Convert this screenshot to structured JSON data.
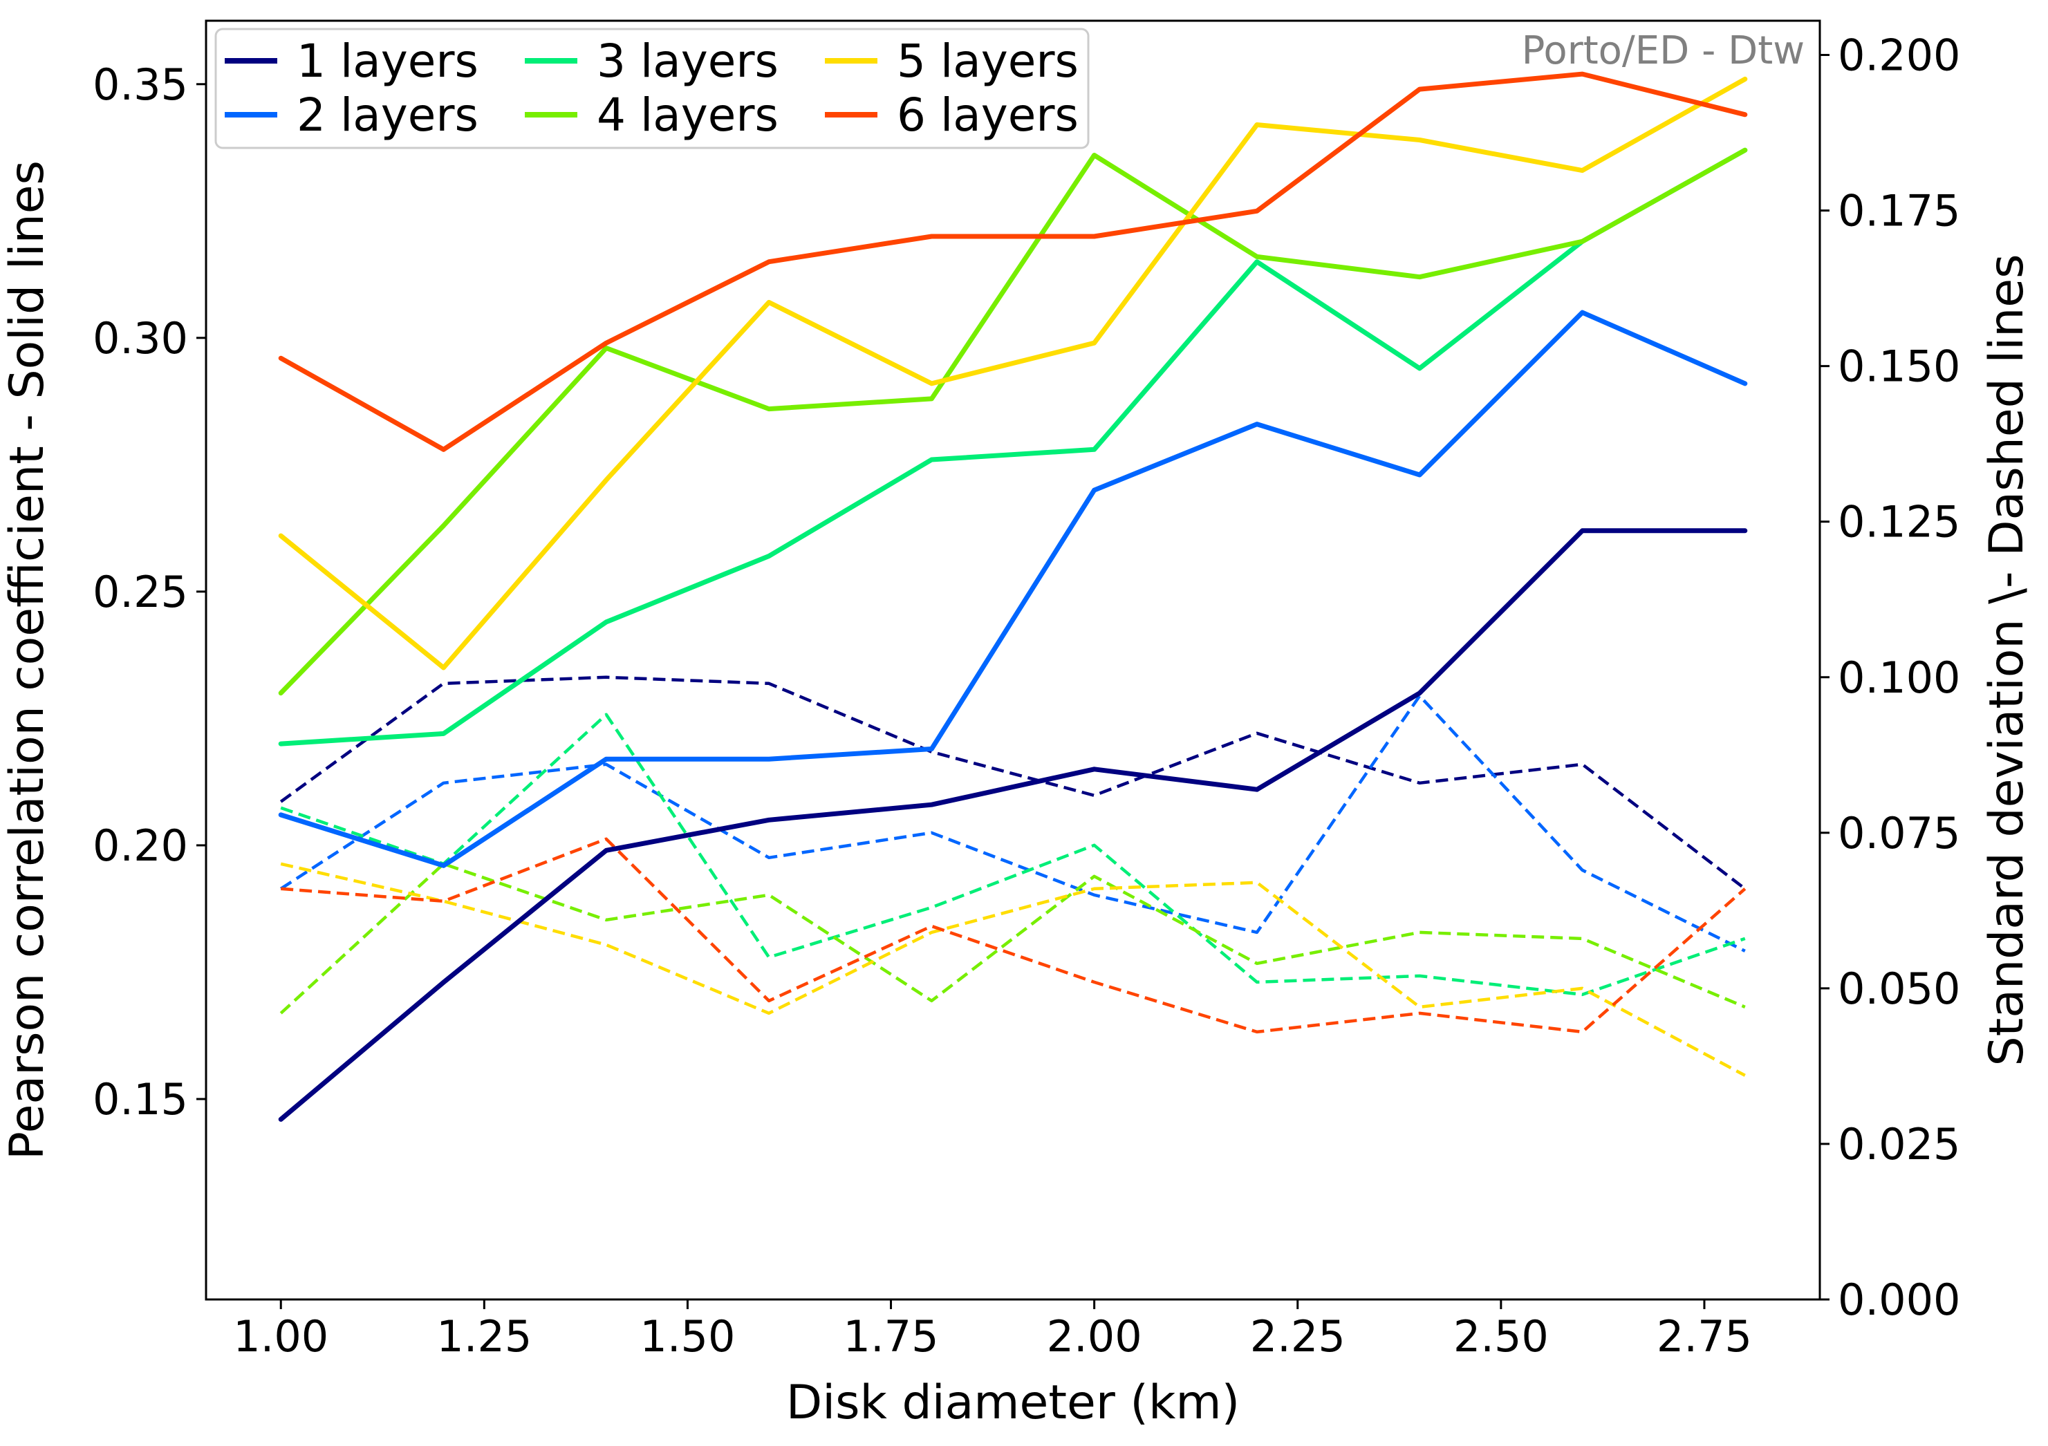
{
  "chart_data": {
    "type": "line",
    "annotation": "Porto/ED - Dtw",
    "xlabel": "Disk diameter (km)",
    "ylabel_left": "Pearson correlation coefficient - Solid lines",
    "ylabel_right": "Standard deviation \\- Dashed lines",
    "xlim": [
      0.908,
      2.892
    ],
    "ylim_left": [
      0.1105,
      0.3625
    ],
    "ylim_right": [
      0.0,
      0.2055
    ],
    "x_ticks": [
      "1.00",
      "1.25",
      "1.50",
      "1.75",
      "2.00",
      "2.25",
      "2.50",
      "2.75"
    ],
    "y_ticks_left": [
      "0.15",
      "0.20",
      "0.25",
      "0.30",
      "0.35"
    ],
    "y_ticks_right": [
      "0.000",
      "0.025",
      "0.050",
      "0.075",
      "0.100",
      "0.125",
      "0.150",
      "0.175",
      "0.200"
    ],
    "grid": false,
    "legend_position": "top-left",
    "x": [
      1.0,
      1.2,
      1.4,
      1.6,
      1.8,
      2.0,
      2.2,
      2.4,
      2.6,
      2.8
    ],
    "series": [
      {
        "name": "1 layers",
        "color": "#000080",
        "correlation": [
          0.146,
          0.173,
          0.199,
          0.205,
          0.208,
          0.215,
          0.211,
          0.23,
          0.262,
          0.262
        ],
        "std_dev": [
          0.08,
          0.099,
          0.1,
          0.099,
          0.088,
          0.081,
          0.091,
          0.083,
          0.086,
          0.066
        ]
      },
      {
        "name": "2 layers",
        "color": "#0066ff",
        "correlation": [
          0.206,
          0.196,
          0.217,
          0.217,
          0.219,
          0.27,
          0.283,
          0.273,
          0.305,
          0.291
        ],
        "std_dev": [
          0.066,
          0.083,
          0.086,
          0.071,
          0.075,
          0.065,
          0.059,
          0.097,
          0.069,
          0.056
        ]
      },
      {
        "name": "3 layers",
        "color": "#00ee77",
        "correlation": [
          0.22,
          0.222,
          0.244,
          0.257,
          0.276,
          0.278,
          0.315,
          0.294,
          0.319,
          0.337
        ],
        "std_dev": [
          0.079,
          0.07,
          0.094,
          0.055,
          0.063,
          0.073,
          0.051,
          0.052,
          0.049,
          0.058
        ]
      },
      {
        "name": "4 layers",
        "color": "#77ee00",
        "correlation": [
          0.23,
          0.263,
          0.298,
          0.286,
          0.288,
          0.336,
          0.316,
          0.312,
          0.319,
          0.337
        ],
        "std_dev": [
          0.046,
          0.07,
          0.061,
          0.065,
          0.048,
          0.068,
          0.054,
          0.059,
          0.058,
          0.047
        ]
      },
      {
        "name": "5 layers",
        "color": "#ffdd00",
        "correlation": [
          0.261,
          0.235,
          0.272,
          0.307,
          0.291,
          0.299,
          0.342,
          0.339,
          0.333,
          0.351
        ],
        "std_dev": [
          0.07,
          0.064,
          0.057,
          0.046,
          0.059,
          0.066,
          0.067,
          0.047,
          0.05,
          0.036
        ]
      },
      {
        "name": "6 layers",
        "color": "#ff4400",
        "correlation": [
          0.296,
          0.278,
          0.299,
          0.315,
          0.32,
          0.32,
          0.325,
          0.349,
          0.352,
          0.344
        ],
        "std_dev": [
          0.066,
          0.064,
          0.074,
          0.048,
          0.06,
          0.051,
          0.043,
          0.046,
          0.043,
          0.066
        ]
      }
    ]
  }
}
